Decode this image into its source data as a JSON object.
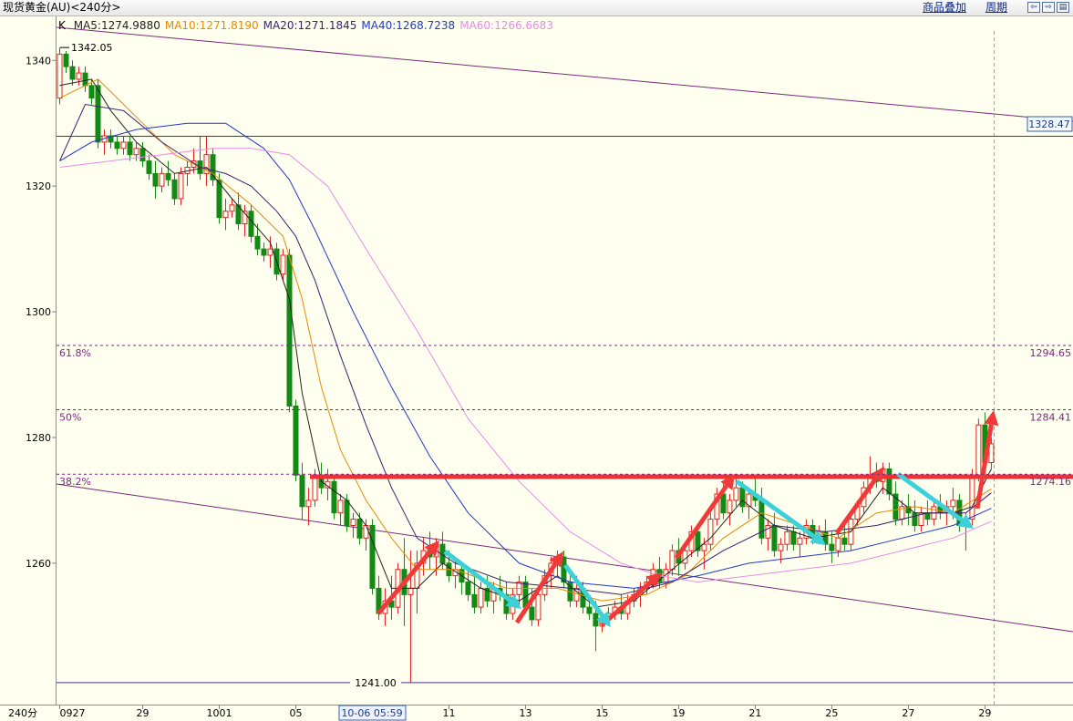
{
  "title": "现货黄金(AU)<240分>",
  "toolbar": [
    "商品叠加",
    "周期"
  ],
  "chart_data": {
    "type": "candlestick",
    "indicator": "K",
    "period_label": "240分",
    "cursor_label": "10-06 05:59",
    "up_color": "#e02020",
    "down_color": "#138a13",
    "ylim": [
      1237.5,
      1347
    ],
    "yticks": [
      1260,
      1280,
      1300,
      1320,
      1340
    ],
    "xlim": [
      -0.5,
      158.8
    ],
    "categories": [
      "0927",
      null,
      null,
      null,
      null,
      null,
      null,
      null,
      null,
      null,
      null,
      null,
      null,
      "29",
      null,
      null,
      null,
      null,
      null,
      null,
      null,
      null,
      null,
      null,
      null,
      "1001",
      null,
      null,
      null,
      null,
      null,
      null,
      null,
      null,
      null,
      null,
      null,
      "05",
      null,
      null,
      null,
      null,
      null,
      null,
      null,
      null,
      null,
      null,
      null,
      null,
      null,
      null,
      null,
      null,
      null,
      null,
      null,
      null,
      null,
      null,
      null,
      "11",
      null,
      null,
      null,
      null,
      null,
      null,
      null,
      null,
      null,
      null,
      null,
      "13",
      null,
      null,
      null,
      null,
      null,
      null,
      null,
      null,
      null,
      null,
      null,
      "15",
      null,
      null,
      null,
      null,
      null,
      null,
      null,
      null,
      null,
      null,
      null,
      "19",
      null,
      null,
      null,
      null,
      null,
      null,
      null,
      null,
      null,
      null,
      null,
      "21",
      null,
      null,
      null,
      null,
      null,
      null,
      null,
      null,
      null,
      null,
      null,
      "25",
      null,
      null,
      null,
      null,
      null,
      null,
      null,
      null,
      null,
      null,
      null,
      "27",
      null,
      null,
      null,
      null,
      null,
      null,
      null,
      null,
      null,
      null,
      null,
      "29",
      null
    ],
    "ohlc": [
      [
        1334,
        1342.05,
        1333,
        1341
      ],
      [
        1341,
        1341.5,
        1338,
        1339
      ],
      [
        1339,
        1340,
        1336,
        1337
      ],
      [
        1337,
        1339,
        1336,
        1338
      ],
      [
        1338,
        1339,
        1335,
        1336
      ],
      [
        1336,
        1337,
        1333,
        1334
      ],
      [
        1336,
        1337,
        1326,
        1327
      ],
      [
        1327,
        1329,
        1325,
        1328
      ],
      [
        1328,
        1329,
        1326,
        1327
      ],
      [
        1327,
        1328,
        1325,
        1326
      ],
      [
        1326,
        1328,
        1325,
        1327
      ],
      [
        1327,
        1328,
        1324,
        1325
      ],
      [
        1325,
        1327,
        1324,
        1326
      ],
      [
        1326,
        1327,
        1323,
        1324
      ],
      [
        1324,
        1325,
        1321,
        1322
      ],
      [
        1322,
        1324,
        1318,
        1320
      ],
      [
        1320,
        1323,
        1319,
        1322
      ],
      [
        1322,
        1324,
        1320,
        1321
      ],
      [
        1321,
        1322,
        1317,
        1318
      ],
      [
        1318,
        1323,
        1317,
        1322
      ],
      [
        1322,
        1324,
        1320,
        1323
      ],
      [
        1323,
        1326,
        1322,
        1324
      ],
      [
        1324,
        1328,
        1321,
        1322
      ],
      [
        1322,
        1328,
        1320,
        1325
      ],
      [
        1325,
        1326,
        1320,
        1321
      ],
      [
        1321,
        1322,
        1314,
        1315
      ],
      [
        1315,
        1318,
        1313,
        1316
      ],
      [
        1316,
        1318,
        1315,
        1317
      ],
      [
        1317,
        1319,
        1313,
        1314
      ],
      [
        1314,
        1317,
        1312,
        1316
      ],
      [
        1316,
        1317,
        1311,
        1312
      ],
      [
        1312,
        1314,
        1309,
        1310
      ],
      [
        1310,
        1311,
        1308,
        1309
      ],
      [
        1309,
        1312,
        1307,
        1310
      ],
      [
        1310,
        1311,
        1305,
        1306
      ],
      [
        1306,
        1310,
        1305,
        1309
      ],
      [
        1309,
        1310,
        1284,
        1285
      ],
      [
        1285,
        1286,
        1273,
        1274
      ],
      [
        1274,
        1276,
        1267,
        1269
      ],
      [
        1269,
        1272,
        1266,
        1270
      ],
      [
        1270,
        1275,
        1269,
        1274
      ],
      [
        1274,
        1276,
        1271,
        1272
      ],
      [
        1272,
        1275,
        1270,
        1273
      ],
      [
        1273,
        1274,
        1267,
        1268
      ],
      [
        1268,
        1271,
        1266,
        1270
      ],
      [
        1270,
        1271,
        1265,
        1266
      ],
      [
        1266,
        1268,
        1264,
        1267
      ],
      [
        1267,
        1268,
        1263,
        1264
      ],
      [
        1264,
        1267,
        1262,
        1266
      ],
      [
        1266,
        1267,
        1255,
        1256
      ],
      [
        1256,
        1258,
        1251,
        1252
      ],
      [
        1252,
        1256,
        1250,
        1254
      ],
      [
        1254,
        1258,
        1251,
        1253
      ],
      [
        1253,
        1260,
        1252,
        1259
      ],
      [
        1259,
        1264,
        1250,
        1255
      ],
      [
        1255,
        1262,
        1241,
        1256
      ],
      [
        1256,
        1262,
        1252,
        1260
      ],
      [
        1260,
        1264,
        1258,
        1262
      ],
      [
        1262,
        1265,
        1259,
        1261
      ],
      [
        1261,
        1264,
        1258,
        1263
      ],
      [
        1263,
        1265,
        1259,
        1260
      ],
      [
        1260,
        1262,
        1257,
        1258
      ],
      [
        1258,
        1261,
        1256,
        1259
      ],
      [
        1259,
        1260,
        1255,
        1257
      ],
      [
        1257,
        1259,
        1254,
        1255
      ],
      [
        1255,
        1258,
        1252,
        1253
      ],
      [
        1253,
        1257,
        1252,
        1256
      ],
      [
        1256,
        1258,
        1253,
        1254
      ],
      [
        1254,
        1257,
        1252,
        1256
      ],
      [
        1256,
        1258,
        1254,
        1255
      ],
      [
        1255,
        1257,
        1251,
        1252
      ],
      [
        1252,
        1256,
        1251,
        1255
      ],
      [
        1255,
        1258,
        1253,
        1257
      ],
      [
        1257,
        1258,
        1252,
        1253
      ],
      [
        1253,
        1256,
        1250,
        1251
      ],
      [
        1251,
        1256,
        1250,
        1255
      ],
      [
        1255,
        1259,
        1254,
        1258
      ],
      [
        1258,
        1261,
        1256,
        1260
      ],
      [
        1260,
        1262,
        1258,
        1261
      ],
      [
        1261,
        1262,
        1256,
        1257
      ],
      [
        1257,
        1259,
        1253,
        1254
      ],
      [
        1254,
        1258,
        1253,
        1256
      ],
      [
        1256,
        1257,
        1252,
        1253
      ],
      [
        1253,
        1255,
        1251,
        1252
      ],
      [
        1252,
        1254,
        1246,
        1250
      ],
      [
        1250,
        1252,
        1249,
        1251
      ],
      [
        1251,
        1253,
        1250,
        1252
      ],
      [
        1252,
        1254,
        1251,
        1253
      ],
      [
        1253,
        1255,
        1251,
        1252
      ],
      [
        1252,
        1255,
        1251,
        1254
      ],
      [
        1254,
        1256,
        1253,
        1255
      ],
      [
        1255,
        1257,
        1253,
        1256
      ],
      [
        1256,
        1258,
        1255,
        1257
      ],
      [
        1257,
        1260,
        1256,
        1259
      ],
      [
        1259,
        1261,
        1256,
        1257
      ],
      [
        1257,
        1260,
        1256,
        1259
      ],
      [
        1259,
        1263,
        1258,
        1262
      ],
      [
        1262,
        1264,
        1258,
        1260
      ],
      [
        1260,
        1263,
        1259,
        1262
      ],
      [
        1262,
        1266,
        1261,
        1265
      ],
      [
        1265,
        1266,
        1261,
        1262
      ],
      [
        1262,
        1264,
        1259,
        1263
      ],
      [
        1263,
        1268,
        1262,
        1267
      ],
      [
        1267,
        1272,
        1266,
        1271
      ],
      [
        1271,
        1273,
        1267,
        1268
      ],
      [
        1268,
        1271,
        1266,
        1270
      ],
      [
        1270,
        1274,
        1269,
        1272
      ],
      [
        1272,
        1273,
        1268,
        1269
      ],
      [
        1269,
        1272,
        1267,
        1271
      ],
      [
        1271,
        1274,
        1269,
        1270
      ],
      [
        1270,
        1272,
        1263,
        1264
      ],
      [
        1264,
        1267,
        1262,
        1266
      ],
      [
        1266,
        1268,
        1261,
        1262
      ],
      [
        1262,
        1264,
        1260,
        1263
      ],
      [
        1263,
        1266,
        1262,
        1265
      ],
      [
        1265,
        1266,
        1262,
        1263
      ],
      [
        1263,
        1265,
        1261,
        1264
      ],
      [
        1264,
        1267,
        1263,
        1266
      ],
      [
        1266,
        1267,
        1263,
        1264
      ],
      [
        1264,
        1266,
        1263,
        1265
      ],
      [
        1265,
        1267,
        1262,
        1263
      ],
      [
        1263,
        1265,
        1260,
        1262
      ],
      [
        1262,
        1265,
        1261,
        1264
      ],
      [
        1264,
        1266,
        1262,
        1263
      ],
      [
        1263,
        1268,
        1262,
        1267
      ],
      [
        1267,
        1270,
        1266,
        1269
      ],
      [
        1269,
        1273,
        1268,
        1272
      ],
      [
        1272,
        1277,
        1271,
        1274
      ],
      [
        1274,
        1276,
        1272,
        1273
      ],
      [
        1273,
        1276,
        1271,
        1275
      ],
      [
        1275,
        1276,
        1270,
        1271
      ],
      [
        1271,
        1273,
        1266,
        1267
      ],
      [
        1267,
        1270,
        1266,
        1269
      ],
      [
        1269,
        1271,
        1266,
        1268
      ],
      [
        1268,
        1270,
        1265,
        1266
      ],
      [
        1266,
        1269,
        1265,
        1268
      ],
      [
        1268,
        1270,
        1266,
        1267
      ],
      [
        1267,
        1270,
        1266,
        1269
      ],
      [
        1269,
        1271,
        1267,
        1268
      ],
      [
        1268,
        1270,
        1266,
        1269
      ],
      [
        1269,
        1272,
        1267,
        1270
      ],
      [
        1270,
        1271,
        1265,
        1266
      ],
      [
        1266,
        1268,
        1262,
        1267
      ],
      [
        1267,
        1275,
        1266,
        1274
      ],
      [
        1274,
        1283,
        1273,
        1282
      ],
      [
        1282,
        1284,
        1274,
        1276
      ],
      [
        1276,
        1280,
        1275,
        1279
      ]
    ],
    "series": [
      {
        "name": "MA5:1274.9880",
        "color": "#222222",
        "x": [
          0,
          5,
          8,
          12,
          18,
          23,
          27,
          33,
          36,
          38,
          41,
          45,
          48,
          52,
          56,
          60,
          66,
          72,
          78,
          84,
          90,
          96,
          102,
          107,
          112,
          118,
          124,
          129,
          134,
          140,
          143,
          146
        ],
        "values": [
          1336,
          1337,
          1332,
          1327,
          1322,
          1323,
          1318,
          1311,
          1302,
          1287,
          1273,
          1270,
          1266,
          1256,
          1256,
          1260,
          1256,
          1254,
          1258,
          1253,
          1254,
          1259,
          1264,
          1270,
          1266,
          1264,
          1265,
          1272,
          1268,
          1268,
          1269,
          1274.988
        ]
      },
      {
        "name": "MA10:1271.8190",
        "color": "#e88a00",
        "x": [
          0,
          6,
          12,
          18,
          24,
          30,
          35,
          38,
          41,
          44,
          48,
          52,
          56,
          62,
          70,
          78,
          85,
          92,
          98,
          104,
          110,
          116,
          122,
          128,
          134,
          140,
          146
        ],
        "values": [
          1334,
          1337,
          1331,
          1325,
          1322,
          1317,
          1312,
          1302,
          1288,
          1278,
          1270,
          1264,
          1259,
          1259,
          1256,
          1256,
          1254,
          1255,
          1258,
          1264,
          1268,
          1266,
          1264,
          1268,
          1269,
          1268,
          1271.819
        ]
      },
      {
        "name": "MA20:1271.1845",
        "color": "#3a1f6a",
        "x": [
          0,
          4,
          10,
          16,
          22,
          26,
          30,
          34,
          37,
          40,
          44,
          48,
          52,
          56,
          62,
          70,
          80,
          88,
          96,
          104,
          112,
          120,
          128,
          136,
          142,
          146
        ],
        "values": [
          1324,
          1333,
          1332,
          1327,
          1323,
          1322,
          1320,
          1316,
          1312,
          1305,
          1293,
          1282,
          1272,
          1264,
          1260,
          1257,
          1256,
          1255,
          1257,
          1262,
          1266,
          1265,
          1266,
          1268,
          1268,
          1271.1845
        ]
      },
      {
        "name": "MA40:1268.7238",
        "color": "#2238c8",
        "x": [
          0,
          5,
          12,
          20,
          26,
          32,
          36,
          40,
          46,
          52,
          58,
          64,
          72,
          80,
          90,
          100,
          108,
          116,
          124,
          132,
          140,
          146
        ],
        "values": [
          1324,
          1327,
          1329,
          1330,
          1330,
          1326,
          1321,
          1313,
          1300,
          1288,
          1277,
          1268,
          1260,
          1257,
          1256,
          1258,
          1260,
          1261,
          1262,
          1264,
          1266,
          1268.7238
        ]
      },
      {
        "name": "MA60:1266.6683",
        "color": "#e68ce6",
        "x": [
          0,
          8,
          16,
          24,
          30,
          36,
          42,
          48,
          56,
          64,
          72,
          80,
          88,
          94,
          100,
          108,
          116,
          124,
          132,
          140,
          146
        ],
        "values": [
          1323,
          1324,
          1325,
          1326,
          1326,
          1325,
          1320,
          1310,
          1297,
          1283,
          1273,
          1265,
          1260,
          1258,
          1257,
          1258,
          1259,
          1260,
          1262,
          1264,
          1266.6683
        ]
      }
    ],
    "high_mark": {
      "value": 1342.05,
      "label": "1342.05"
    },
    "low_mark": {
      "value": 1241,
      "label": "1241.00"
    },
    "fib_levels": [
      {
        "label": "61.8%",
        "value": 1294.65
      },
      {
        "label": "50%",
        "value": 1284.41
      },
      {
        "label": "38.2%",
        "value": 1274.16
      }
    ],
    "trendline_label": "1328.47"
  }
}
